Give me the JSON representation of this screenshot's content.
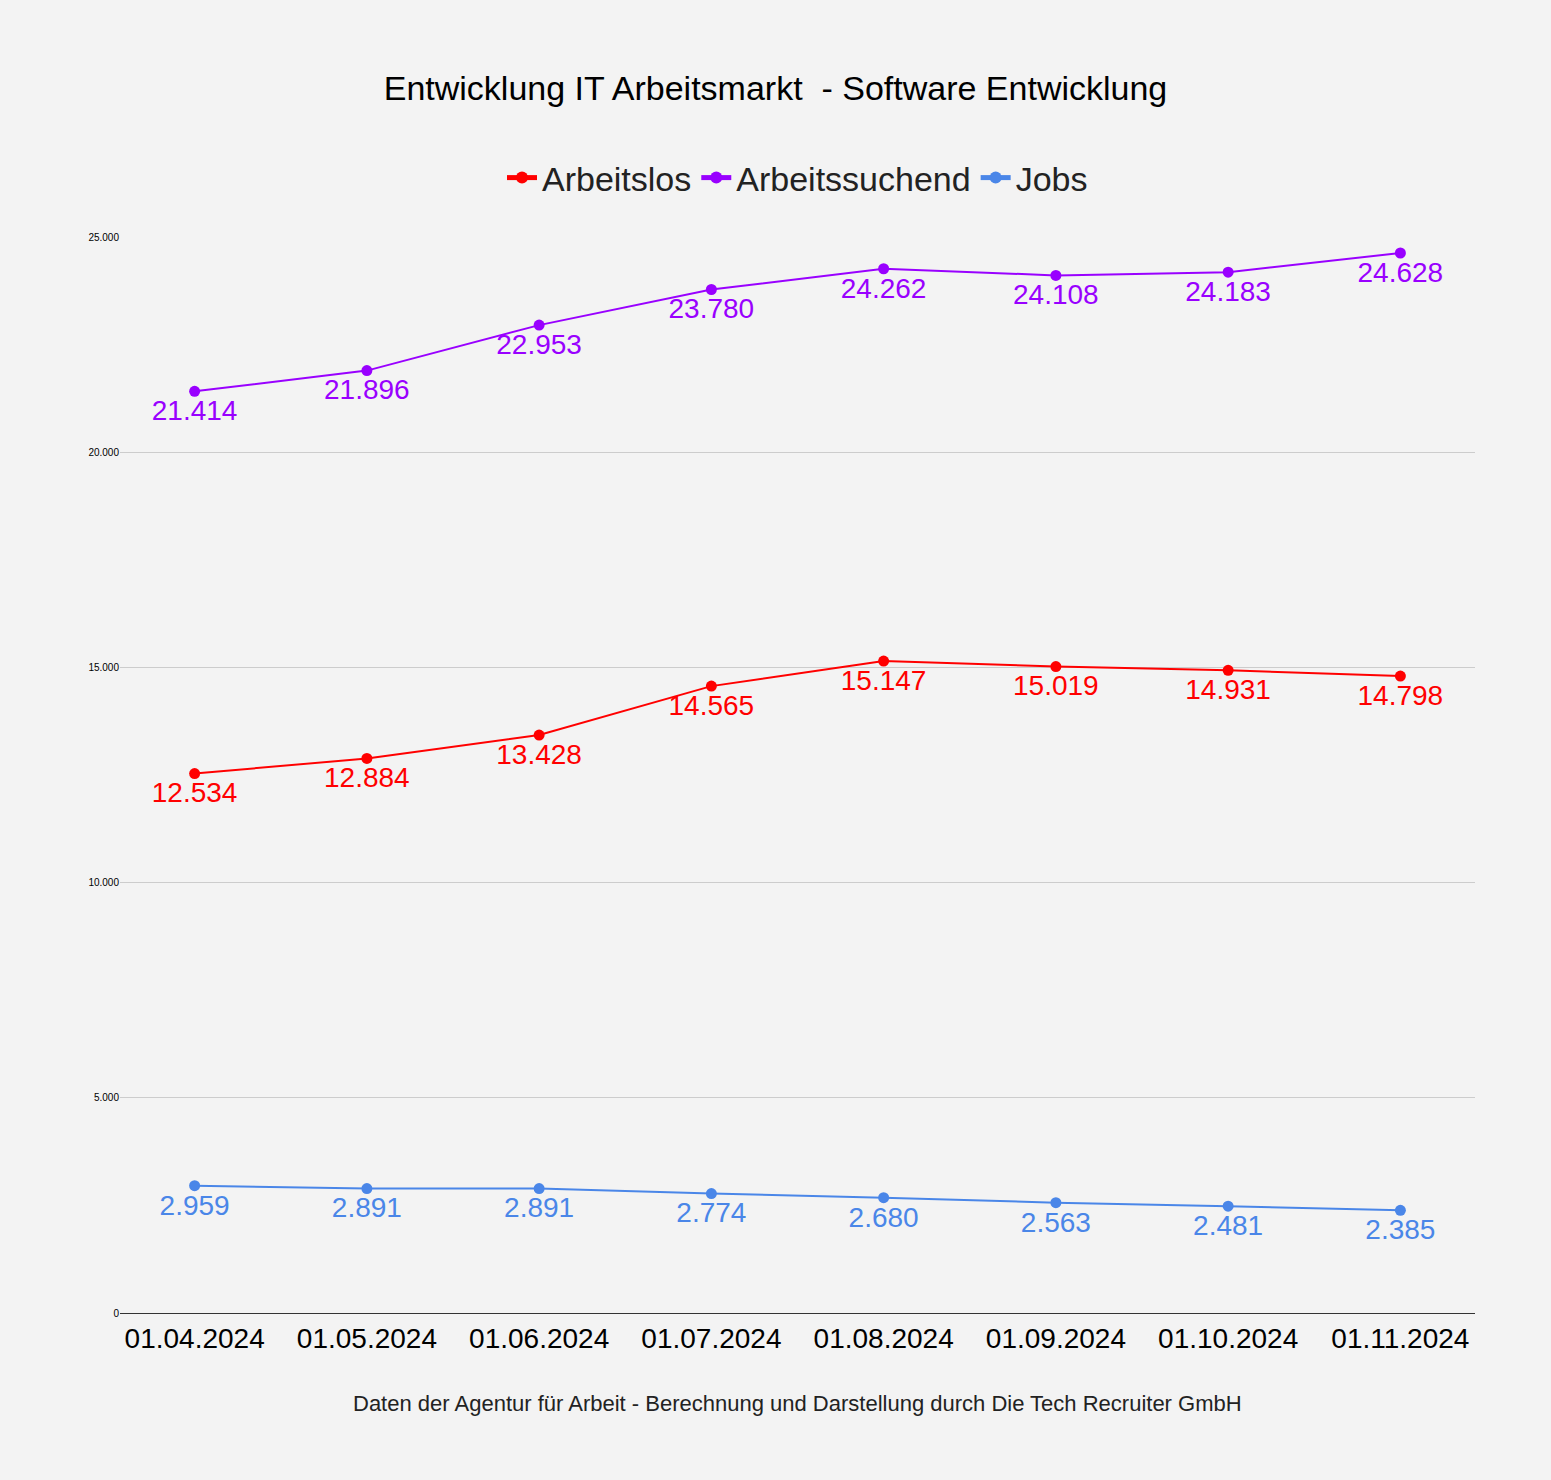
{
  "chart_data": {
    "type": "line",
    "title": "Entwicklung IT Arbeitsmarkt  - Software Entwicklung",
    "source": "Daten der Agentur für Arbeit - Berechnung und Darstellung durch Die Tech Recruiter GmbH",
    "categories": [
      "01.04.2024",
      "01.05.2024",
      "01.06.2024",
      "01.07.2024",
      "01.08.2024",
      "01.09.2024",
      "01.10.2024",
      "01.11.2024"
    ],
    "series": [
      {
        "name": "Arbeitslos",
        "color": "#ff0000",
        "marker": "circle",
        "line_style": "solid",
        "values": [
          12534,
          12884,
          13428,
          14565,
          15147,
          15019,
          14931,
          14798
        ],
        "value_labels": [
          "12.534",
          "12.884",
          "13.428",
          "14.565",
          "15.147",
          "15.019",
          "14.931",
          "14.798"
        ]
      },
      {
        "name": "Arbeitssuchend",
        "color": "#9900ff",
        "marker": "circle",
        "line_style": "solid",
        "values": [
          21414,
          21896,
          22953,
          23780,
          24262,
          24108,
          24183,
          24628
        ],
        "value_labels": [
          "21.414",
          "21.896",
          "22.953",
          "23.780",
          "24.262",
          "24.108",
          "24.183",
          "24.628"
        ]
      },
      {
        "name": "Jobs",
        "color": "#4a86e8",
        "marker": "circle",
        "line_style": "solid",
        "values": [
          2959,
          2891,
          2891,
          2774,
          2680,
          2563,
          2481,
          2385
        ],
        "value_labels": [
          "2.959",
          "2.891",
          "2.891",
          "2.774",
          "2.680",
          "2.563",
          "2.481",
          "2.385"
        ]
      }
    ],
    "ylim": [
      0,
      25000
    ],
    "yticks": [
      0,
      {
        "value": 5000,
        "label": "5.000"
      },
      {
        "value": 10000,
        "label": "10.000"
      },
      {
        "value": 15000,
        "label": "15.000"
      },
      {
        "value": 20000,
        "label": "20.000"
      },
      {
        "value": 25000,
        "label": "25.000"
      }
    ],
    "grid": true,
    "legend": "top",
    "data_labels": true
  }
}
